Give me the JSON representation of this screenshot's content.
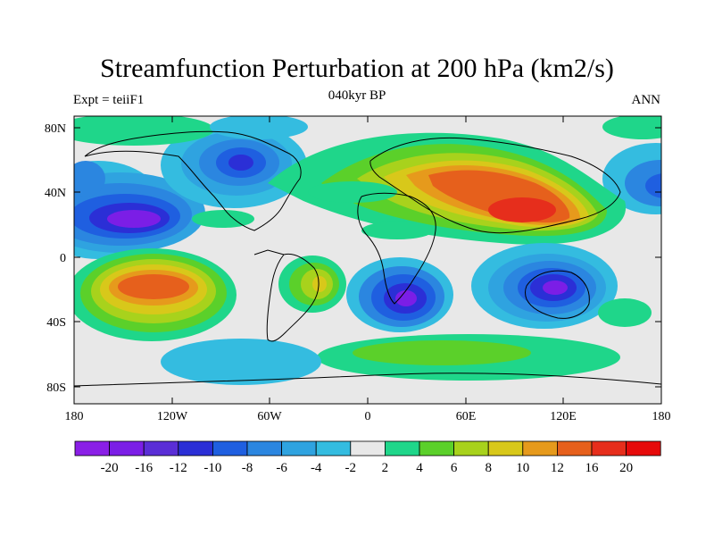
{
  "title": "Streamfunction Perturbation at 200 hPa (km2/s)",
  "subtitle": "040kyr BP",
  "left_string": "Expt = teiiF1",
  "right_string": "ANN",
  "lat_labels": [
    "80N",
    "40N",
    "0",
    "40S",
    "80S"
  ],
  "lon_labels": [
    "180",
    "120W",
    "60W",
    "0",
    "60E",
    "120E",
    "180"
  ],
  "colorbar": {
    "labels": [
      "-20",
      "-16",
      "-12",
      "-10",
      "-8",
      "-6",
      "-4",
      "-2",
      "2",
      "4",
      "6",
      "8",
      "10",
      "12",
      "16",
      "20"
    ],
    "colors": [
      "#8a1fe6",
      "#7b1ee6",
      "#5a2ed6",
      "#2b2fd6",
      "#1f5fe0",
      "#2b86e0",
      "#2fa3e0",
      "#34bce0",
      "#e8e8e8",
      "#1fd68a",
      "#5bd02a",
      "#a8d21c",
      "#d8c81a",
      "#e69a1c",
      "#e6601c",
      "#e62e1c",
      "#e60a0a"
    ]
  }
}
